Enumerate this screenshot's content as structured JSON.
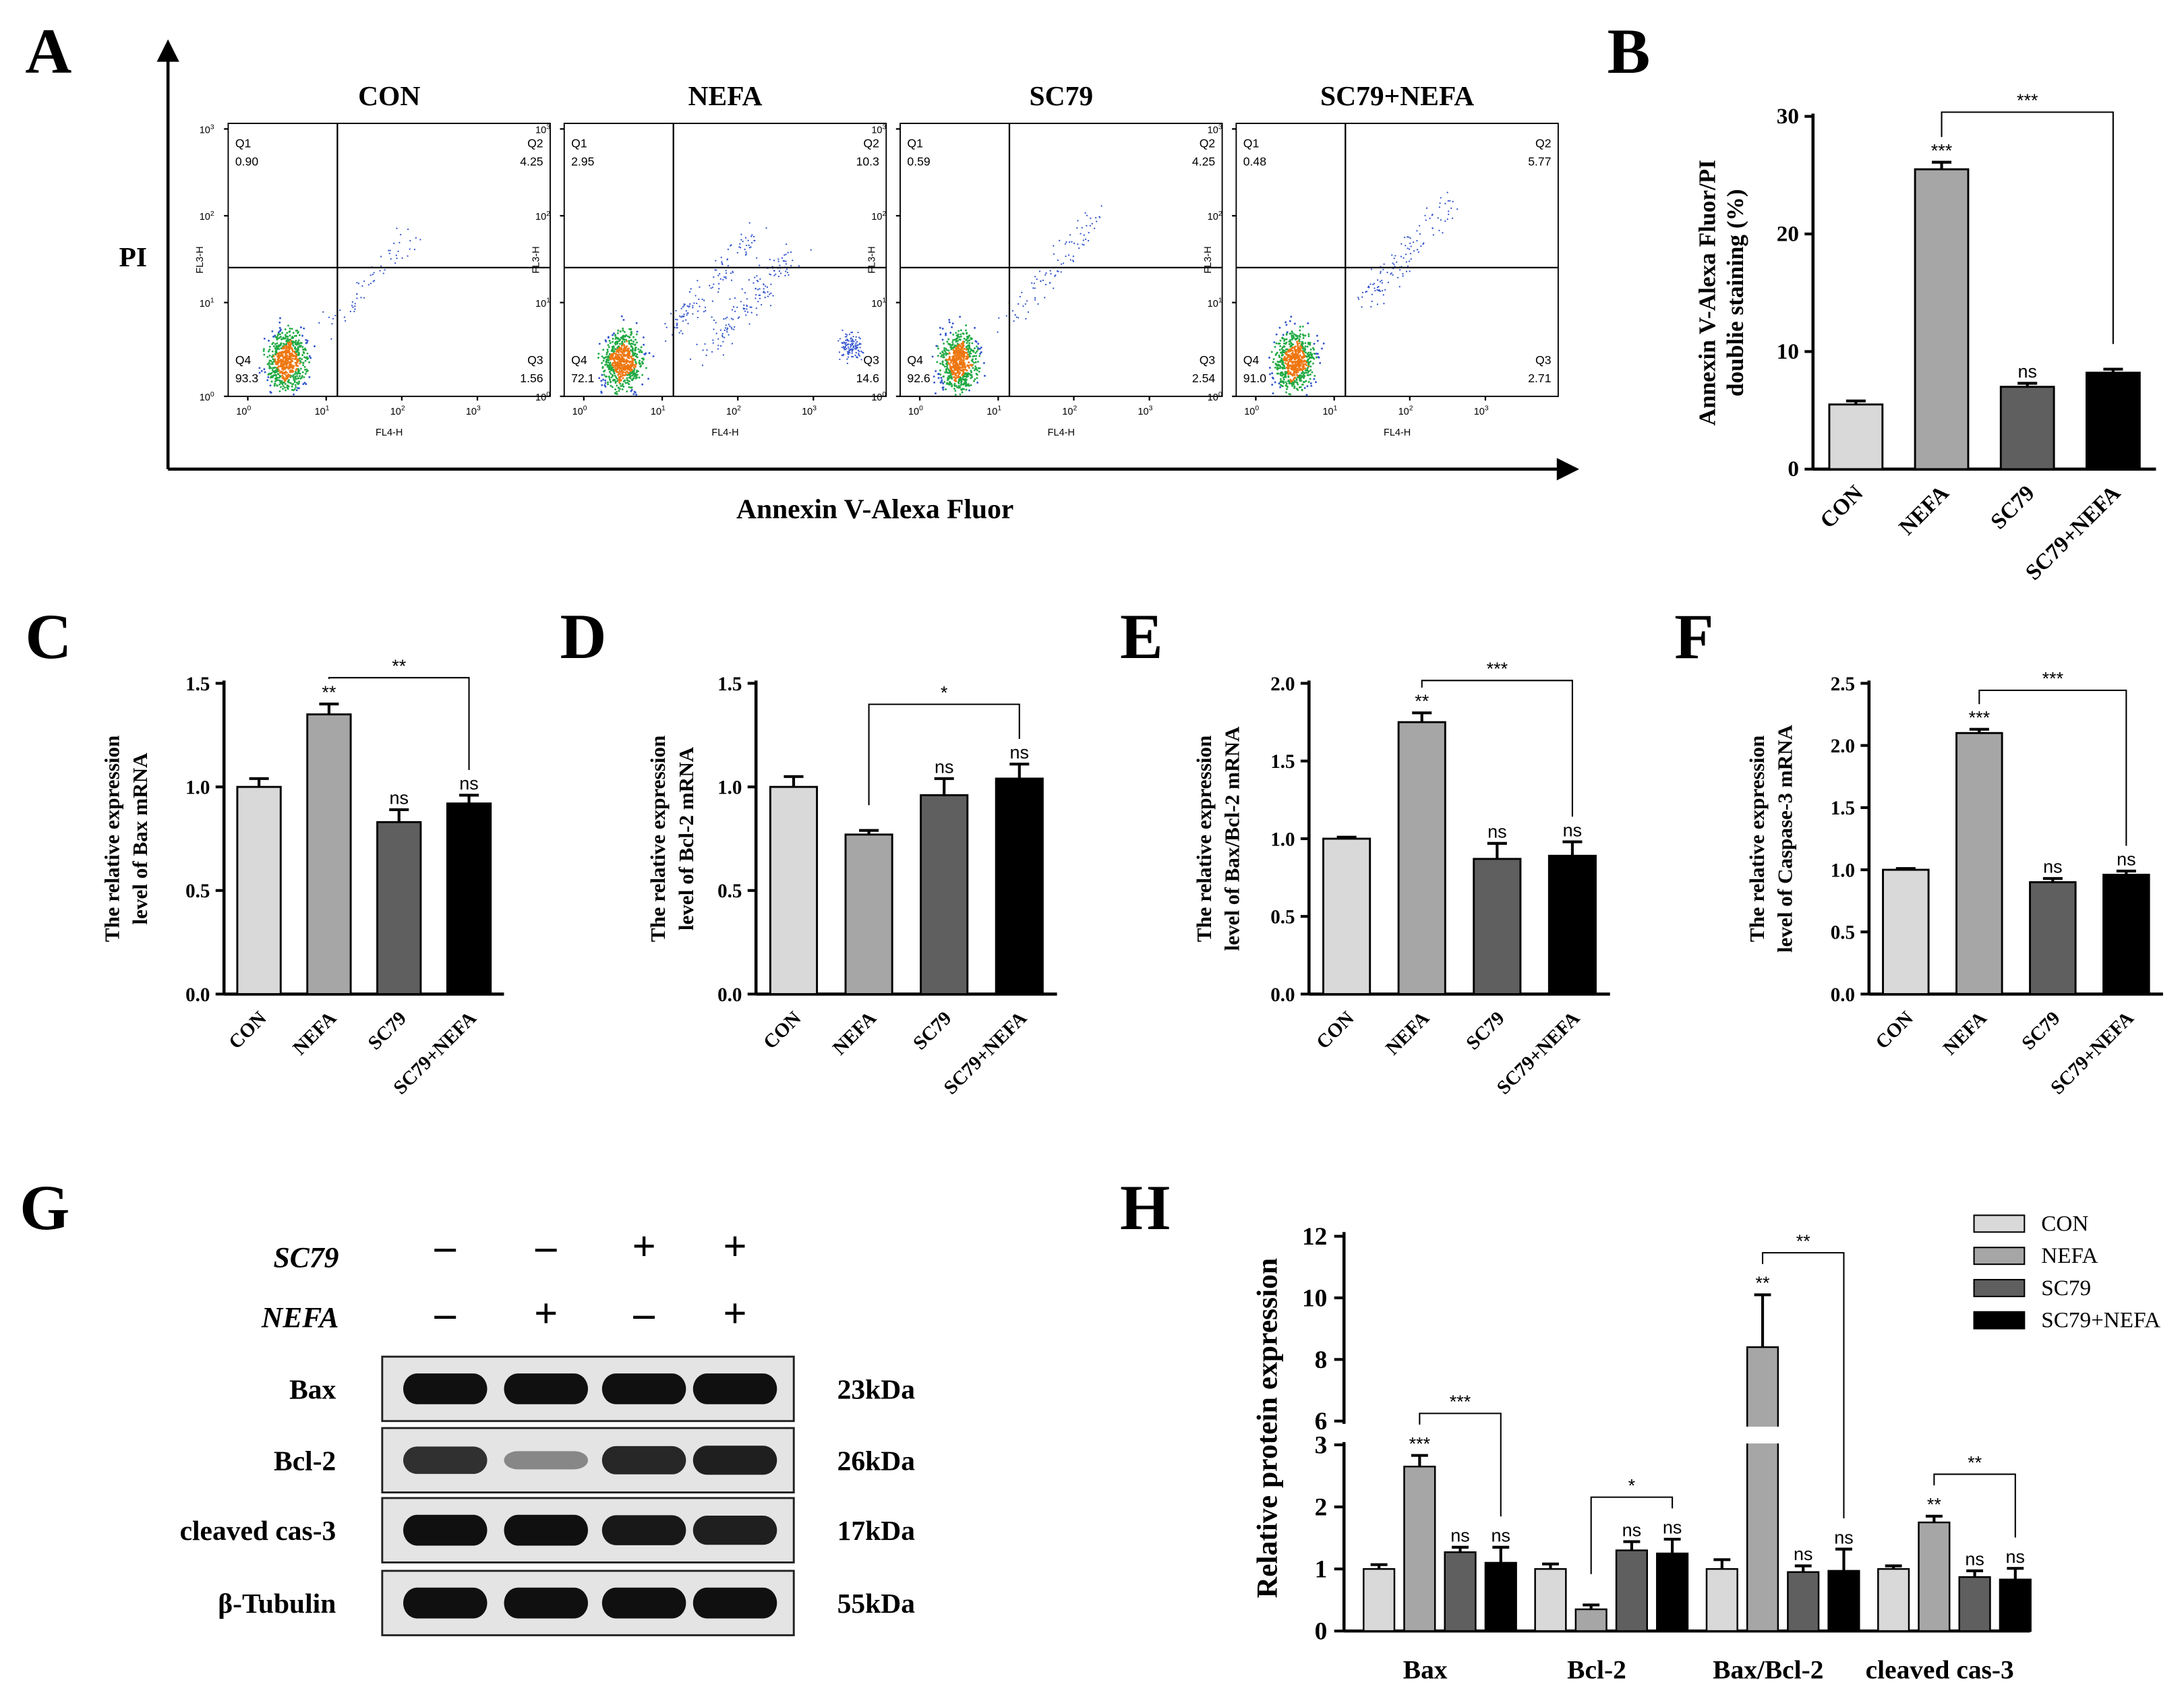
{
  "colors": {
    "con": "#d9d9d9",
    "nefa": "#a6a6a6",
    "sc79": "#5f5f5f",
    "sc79nefa": "#000000",
    "dots": "#3355cc",
    "dense_mid": "#22aa44",
    "dense_core": "#ee7711"
  },
  "panel_labels": [
    "A",
    "B",
    "C",
    "D",
    "E",
    "F",
    "G",
    "H"
  ],
  "panelA": {
    "y_axis_label": "PI",
    "x_axis_label": "Annexin V-Alexa Fluor",
    "plots": [
      {
        "title": "CON",
        "q1": "0.90",
        "q2": "4.25",
        "q3": "1.56",
        "q4": "93.3"
      },
      {
        "title": "NEFA",
        "q1": "2.95",
        "q2": "10.3",
        "q3": "14.6",
        "q4": "72.1"
      },
      {
        "title": "SC79",
        "q1": "0.59",
        "q2": "4.25",
        "q3": "2.54",
        "q4": "92.6"
      },
      {
        "title": "SC79+NEFA",
        "q1": "0.48",
        "q2": "5.77",
        "q3": "2.71",
        "q4": "91.0"
      }
    ],
    "quadrant_names": [
      "Q1",
      "Q2",
      "Q3",
      "Q4"
    ],
    "fl3_label": "FL3-H",
    "fl4_label": "FL4-H",
    "decade_base": "10",
    "decade_exps": [
      "0",
      "1",
      "2",
      "3"
    ]
  },
  "chart_data": [
    {
      "panel": "B",
      "type": "bar",
      "categories": [
        "CON",
        "NEFA",
        "SC79",
        "SC79+NEFA"
      ],
      "values": [
        5.5,
        25.5,
        7.0,
        8.2
      ],
      "errors": [
        0.3,
        0.6,
        0.3,
        0.3
      ],
      "annotations": [
        "",
        "***",
        "ns",
        ""
      ],
      "bracket": {
        "from": 1,
        "to": 3,
        "label": "***"
      },
      "ylabel_lines": [
        "Annexin V-Alexa Fluor/PI",
        "doublie staining (%)"
      ],
      "ylim": [
        0,
        30
      ],
      "yticks": [
        "0",
        "10",
        "20",
        "30"
      ]
    },
    {
      "panel": "C",
      "type": "bar",
      "categories": [
        "CON",
        "NEFA",
        "SC79",
        "SC79+NEFA"
      ],
      "values": [
        1.0,
        1.35,
        0.83,
        0.92
      ],
      "errors": [
        0.04,
        0.05,
        0.06,
        0.04
      ],
      "annotations": [
        "",
        "**",
        "ns",
        "ns"
      ],
      "bracket": {
        "from": 1,
        "to": 3,
        "label": "**"
      },
      "ylabel_lines": [
        "The relative expression",
        "level of Bax mRNA"
      ],
      "ylim": [
        0,
        1.5
      ],
      "yticks": [
        "0.0",
        "0.5",
        "1.0",
        "1.5"
      ]
    },
    {
      "panel": "D",
      "type": "bar",
      "categories": [
        "CON",
        "NEFA",
        "SC79",
        "SC79+NEFA"
      ],
      "values": [
        1.0,
        0.77,
        0.96,
        1.04
      ],
      "errors": [
        0.05,
        0.02,
        0.08,
        0.07
      ],
      "annotations": [
        "",
        "",
        "ns",
        "ns"
      ],
      "bracket": {
        "from": 1,
        "to": 3,
        "label": "*"
      },
      "ylabel_lines": [
        "The relative expression",
        "level of Bcl-2 mRNA"
      ],
      "ylim": [
        0,
        1.5
      ],
      "yticks": [
        "0.0",
        "0.5",
        "1.0",
        "1.5"
      ]
    },
    {
      "panel": "E",
      "type": "bar",
      "categories": [
        "CON",
        "NEFA",
        "SC79",
        "SC79+NEFA"
      ],
      "values": [
        1.0,
        1.75,
        0.87,
        0.89
      ],
      "errors": [
        0.01,
        0.06,
        0.1,
        0.09
      ],
      "annotations": [
        "",
        "**",
        "ns",
        "ns"
      ],
      "bracket": {
        "from": 1,
        "to": 3,
        "label": "***"
      },
      "ylabel_lines": [
        "The relative expression",
        "level of Bax/Bcl-2 mRNA"
      ],
      "ylim": [
        0,
        2.0
      ],
      "yticks": [
        "0.0",
        "0.5",
        "1.0",
        "1.5",
        "2.0"
      ]
    },
    {
      "panel": "F",
      "type": "bar",
      "categories": [
        "CON",
        "NEFA",
        "SC79",
        "SC79+NEFA"
      ],
      "values": [
        1.0,
        2.1,
        0.9,
        0.96
      ],
      "errors": [
        0.01,
        0.03,
        0.03,
        0.03
      ],
      "annotations": [
        "",
        "***",
        "ns",
        "ns"
      ],
      "bracket": {
        "from": 1,
        "to": 3,
        "label": "***"
      },
      "ylabel_lines": [
        "The relative expression",
        "level of Caspase-3 mRNA"
      ],
      "ylim": [
        0,
        2.5
      ],
      "yticks": [
        "0.0",
        "0.5",
        "1.0",
        "1.5",
        "2.0",
        "2.5"
      ]
    },
    {
      "panel": "H",
      "type": "bar",
      "groups": [
        "Bax",
        "Bcl-2",
        "Bax/Bcl-2",
        "cleaved cas-3"
      ],
      "series": [
        {
          "name": "CON",
          "values": [
            1.0,
            1.0,
            1.0,
            1.0
          ],
          "errors": [
            0.07,
            0.08,
            0.15,
            0.05
          ]
        },
        {
          "name": "NEFA",
          "values": [
            2.65,
            0.35,
            8.4,
            1.75
          ],
          "errors": [
            0.18,
            0.07,
            1.7,
            0.1
          ]
        },
        {
          "name": "SC79",
          "values": [
            1.27,
            1.3,
            0.95,
            0.87
          ],
          "errors": [
            0.08,
            0.14,
            0.1,
            0.1
          ]
        },
        {
          "name": "SC79+NEFA",
          "values": [
            1.1,
            1.25,
            0.97,
            0.83
          ],
          "errors": [
            0.25,
            0.23,
            0.35,
            0.18
          ]
        }
      ],
      "annotations": [
        [
          "",
          "***",
          "ns",
          "ns"
        ],
        [
          "",
          "",
          "ns",
          "ns"
        ],
        [
          "",
          "**",
          "ns",
          "ns"
        ],
        [
          "",
          "**",
          "ns",
          "ns"
        ]
      ],
      "brackets": [
        "***",
        "*",
        "**",
        "**"
      ],
      "ylabel": "Relative protein expression",
      "axis_break": [
        3,
        6
      ],
      "ylim": [
        0,
        12
      ],
      "yticks": [
        "0",
        "1",
        "2",
        "3",
        "6",
        "8",
        "10",
        "12"
      ]
    }
  ],
  "panelG": {
    "row_labels": [
      "SC79",
      "NEFA"
    ],
    "sc79_signs": [
      "–",
      "–",
      "+",
      "+"
    ],
    "nefa_signs": [
      "–",
      "+",
      "–",
      "+"
    ],
    "proteins": [
      "Bax",
      "Bcl-2",
      "cleaved cas-3",
      "β-Tubulin"
    ],
    "sizes": [
      "23kDa",
      "26kDa",
      "17kDa",
      "55kDa"
    ],
    "band_intensity": [
      [
        1.0,
        1.0,
        1.0,
        1.0
      ],
      [
        0.8,
        0.25,
        0.85,
        0.9
      ],
      [
        1.0,
        1.0,
        0.95,
        0.9
      ],
      [
        1.0,
        1.0,
        1.0,
        1.0
      ]
    ]
  }
}
